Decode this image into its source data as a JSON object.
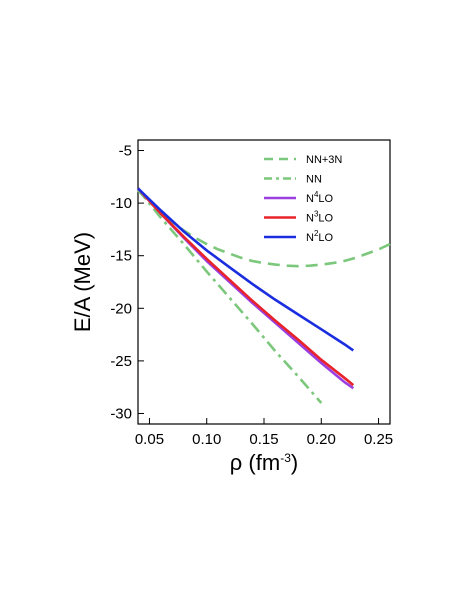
{
  "chart_data": {
    "type": "line",
    "title": "",
    "xlabel": "ρ (fm",
    "xlabel_sup": "-3",
    "xlabel_close": ")",
    "ylabel": "E/A (MeV)",
    "xlim": [
      0.04,
      0.26
    ],
    "ylim": [
      -31,
      -4
    ],
    "xticks": [
      0.05,
      0.1,
      0.15,
      0.2,
      0.25
    ],
    "xtick_labels": [
      "0.05",
      "0.10",
      "0.15",
      "0.20",
      "0.25"
    ],
    "yticks": [
      -5,
      -10,
      -15,
      -20,
      -25,
      -30
    ],
    "ytick_labels": [
      "-5",
      "-10",
      "-15",
      "-20",
      "-25",
      "-30"
    ],
    "legend_position": "top-right",
    "grid": false,
    "series": [
      {
        "name": "NN+3N",
        "legend": {
          "base": "NN+3N",
          "sup": "",
          "rest": ""
        },
        "color": "#7bc77b",
        "dash": "dash",
        "x": [
          0.04,
          0.05,
          0.06,
          0.07,
          0.08,
          0.09,
          0.1,
          0.11,
          0.12,
          0.13,
          0.14,
          0.15,
          0.16,
          0.17,
          0.18,
          0.19,
          0.2,
          0.21,
          0.22,
          0.23,
          0.24,
          0.25,
          0.26
        ],
        "y": [
          -8.8,
          -9.9,
          -10.9,
          -11.8,
          -12.6,
          -13.3,
          -13.9,
          -14.4,
          -14.8,
          -15.2,
          -15.5,
          -15.7,
          -15.85,
          -15.95,
          -16.0,
          -15.95,
          -15.85,
          -15.7,
          -15.5,
          -15.2,
          -14.8,
          -14.4,
          -13.9
        ]
      },
      {
        "name": "NN",
        "legend": {
          "base": "NN",
          "sup": "",
          "rest": ""
        },
        "color": "#7bc77b",
        "dash": "dashdot",
        "x": [
          0.04,
          0.06,
          0.08,
          0.1,
          0.12,
          0.14,
          0.16,
          0.18,
          0.2
        ],
        "y": [
          -8.7,
          -11.4,
          -13.9,
          -16.5,
          -19.0,
          -21.5,
          -24.1,
          -26.5,
          -29.0
        ]
      },
      {
        "name": "N4LO",
        "legend": {
          "base": "N",
          "sup": "4",
          "rest": "LO"
        },
        "color": "#9c3fe0",
        "dash": "solid",
        "x": [
          0.04,
          0.06,
          0.08,
          0.1,
          0.12,
          0.14,
          0.16,
          0.18,
          0.2,
          0.22,
          0.228
        ],
        "y": [
          -8.6,
          -11.0,
          -13.3,
          -15.5,
          -17.5,
          -19.5,
          -21.4,
          -23.3,
          -25.2,
          -27.0,
          -27.6
        ]
      },
      {
        "name": "N3LO",
        "legend": {
          "base": "N",
          "sup": "3",
          "rest": "LO"
        },
        "color": "#e8232a",
        "dash": "solid",
        "x": [
          0.04,
          0.06,
          0.08,
          0.1,
          0.12,
          0.14,
          0.16,
          0.18,
          0.2,
          0.22,
          0.228
        ],
        "y": [
          -8.6,
          -11.0,
          -13.2,
          -15.3,
          -17.3,
          -19.3,
          -21.2,
          -23.0,
          -24.9,
          -26.6,
          -27.3
        ]
      },
      {
        "name": "N2LO",
        "legend": {
          "base": "N",
          "sup": "2",
          "rest": "LO"
        },
        "color": "#1a2ee0",
        "dash": "solid",
        "x": [
          0.04,
          0.06,
          0.08,
          0.1,
          0.12,
          0.14,
          0.16,
          0.18,
          0.2,
          0.22,
          0.228
        ],
        "y": [
          -8.6,
          -10.7,
          -12.7,
          -14.5,
          -16.1,
          -17.7,
          -19.2,
          -20.6,
          -22.0,
          -23.4,
          -24.0
        ]
      }
    ]
  }
}
